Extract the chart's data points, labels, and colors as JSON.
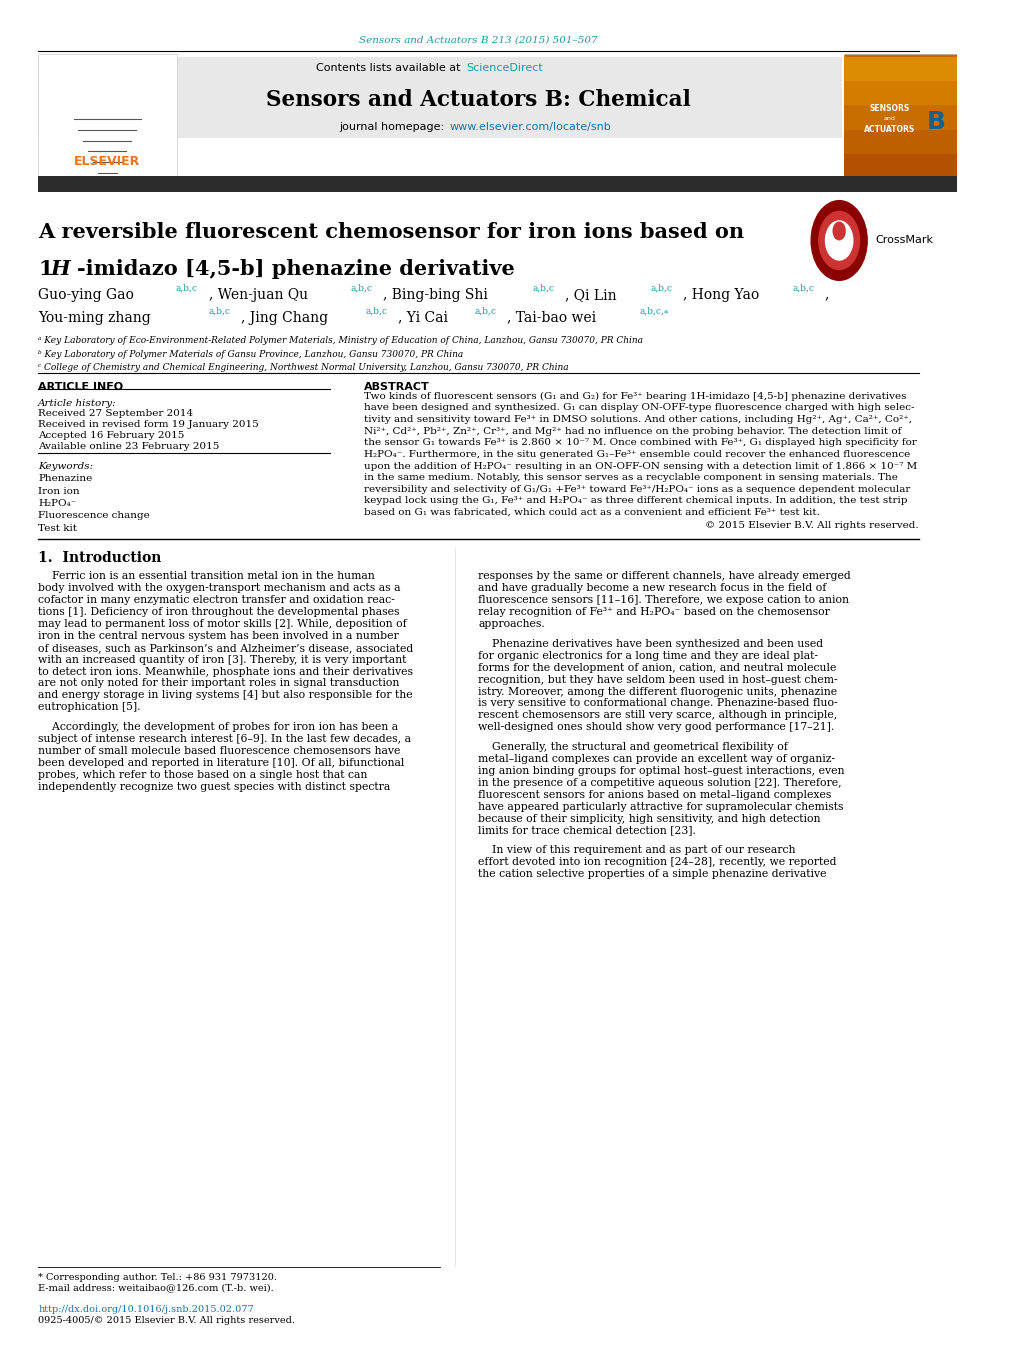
{
  "page_width": 10.2,
  "page_height": 13.51,
  "bg_color": "#ffffff",
  "top_citation": "Sensors and Actuators B 213 (2015) 501–507",
  "journal_name": "Sensors and Actuators B: Chemical",
  "contents_line": "Contents lists available at ScienceDirect",
  "article_info_header": "ARTICLE INFO",
  "abstract_header": "ABSTRACT",
  "article_history_label": "Article history:",
  "received1": "Received 27 September 2014",
  "received2": "Received in revised form 19 January 2015",
  "accepted": "Accepted 16 February 2015",
  "available": "Available online 23 February 2015",
  "keywords_label": "Keywords:",
  "kw1": "Phenazine",
  "kw2": "Iron ion",
  "kw3": "H₂PO₄⁻",
  "kw4": "Fluorescence change",
  "kw5": "Test kit",
  "copyright": "© 2015 Elsevier B.V. All rights reserved.",
  "section1_title": "1.  Introduction",
  "footer_corresponding": "* Corresponding author. Tel.: +86 931 7973120.",
  "footer_email": "E-mail address: weitaibao@126.com (T.-b. wei).",
  "footer_doi": "http://dx.doi.org/10.1016/j.snb.2015.02.077",
  "footer_issn": "0925-4005/© 2015 Elsevier B.V. All rights reserved.",
  "affil_a": "ᵃ Key Laboratory of Eco-Environment-Related Polymer Materials, Ministry of Education of China, Lanzhou, Gansu 730070, PR China",
  "affil_b": "ᵇ Key Laboratory of Polymer Materials of Gansu Province, Lanzhou, Gansu 730070, PR China",
  "affil_c": "ᶜ College of Chemistry and Chemical Engineering, Northwest Normal University, Lanzhou, Gansu 730070, PR China",
  "header_bar_color": "#2c2c2c",
  "teal_color": "#2196a8",
  "orange_color": "#e87722",
  "link_color": "#1a73a7",
  "header_bg": "#e8e8e8",
  "abstract_lines": [
    "Two kinds of fluorescent sensors (G₁ and G₂) for Fe³⁺ bearing 1H-imidazo [4,5-b] phenazine derivatives",
    "have been designed and synthesized. G₁ can display ON-OFF-type fluorescence charged with high selec-",
    "tivity and sensitivity toward Fe³⁺ in DMSO solutions. And other cations, including Hg²⁺, Ag⁺, Ca²⁺, Co²⁺,",
    "Ni²⁺, Cd²⁺, Pb²⁺, Zn²⁺, Cr³⁺, and Mg²⁺ had no influence on the probing behavior. The detection limit of",
    "the sensor G₁ towards Fe³⁺ is 2.860 × 10⁻⁷ M. Once combined with Fe³⁺, G₁ displayed high specificity for",
    "H₂PO₄⁻. Furthermore, in the situ generated G₁–Fe³⁺ ensemble could recover the enhanced fluorescence",
    "upon the addition of H₂PO₄⁻ resulting in an ON-OFF-ON sensing with a detection limit of 1.866 × 10⁻⁷ M",
    "in the same medium. Notably, this sensor serves as a recyclable component in sensing materials. The",
    "reversibility and selectivity of G₁/G₁ +Fe³⁺ toward Fe³⁺/H₂PO₄⁻ ions as a sequence dependent molecular",
    "keypad lock using the G₁, Fe³⁺ and H₂PO₄⁻ as three different chemical inputs. In addition, the test strip",
    "based on G₁ was fabricated, which could act as a convenient and efficient Fe³⁺ test kit."
  ],
  "intro1_lines": [
    "    Ferric ion is an essential transition metal ion in the human",
    "body involved with the oxygen-transport mechanism and acts as a",
    "cofactor in many enzymatic electron transfer and oxidation reac-",
    "tions [1]. Deficiency of iron throughout the developmental phases",
    "may lead to permanent loss of motor skills [2]. While, deposition of",
    "iron in the central nervous system has been involved in a number",
    "of diseases, such as Parkinson’s and Alzheimer’s disease, associated",
    "with an increased quantity of iron [3]. Thereby, it is very important",
    "to detect iron ions. Meanwhile, phosphate ions and their derivatives",
    "are not only noted for their important roles in signal transduction",
    "and energy storage in living systems [4] but also responsible for the",
    "eutrophication [5]."
  ],
  "intro1b_lines": [
    "    Accordingly, the development of probes for iron ion has been a",
    "subject of intense research interest [6–9]. In the last few decades, a",
    "number of small molecule based fluorescence chemosensors have",
    "been developed and reported in literature [10]. Of all, bifunctional",
    "probes, which refer to those based on a single host that can",
    "independently recognize two guest species with distinct spectra"
  ],
  "intro2_lines": [
    "responses by the same or different channels, have already emerged",
    "and have gradually become a new research focus in the field of",
    "fluorescence sensors [11–16]. Therefore, we expose cation to anion",
    "relay recognition of Fe³⁺ and H₂PO₄⁻ based on the chemosensor",
    "approaches."
  ],
  "intro2b_lines": [
    "    Phenazine derivatives have been synthesized and been used",
    "for organic electronics for a long time and they are ideal plat-",
    "forms for the development of anion, cation, and neutral molecule",
    "recognition, but they have seldom been used in host–guest chem-",
    "istry. Moreover, among the different fluorogenic units, phenazine",
    "is very sensitive to conformational change. Phenazine-based fluo-",
    "rescent chemosensors are still very scarce, although in principle,",
    "well-designed ones should show very good performance [17–21]."
  ],
  "intro2c_lines": [
    "    Generally, the structural and geometrical flexibility of",
    "metal–ligand complexes can provide an excellent way of organiz-",
    "ing anion binding groups for optimal host–guest interactions, even",
    "in the presence of a competitive aqueous solution [22]. Therefore,",
    "fluorescent sensors for anions based on metal–ligand complexes",
    "have appeared particularly attractive for supramolecular chemists",
    "because of their simplicity, high sensitivity, and high detection",
    "limits for trace chemical detection [23]."
  ],
  "intro2d_lines": [
    "    In view of this requirement and as part of our research",
    "effort devoted into ion recognition [24–28], recently, we reported",
    "the cation selective properties of a simple phenazine derivative"
  ]
}
